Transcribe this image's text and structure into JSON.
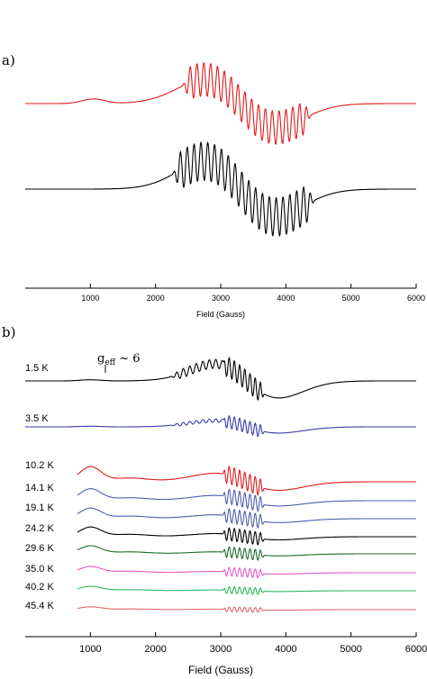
{
  "chart_data": [
    {
      "type": "line",
      "panel_label": "a)",
      "title": "",
      "xlabel": "Field (Gauss)",
      "ylabel": "",
      "xlim": [
        0,
        6000
      ],
      "x_ticks": [
        1000,
        2000,
        3000,
        4000,
        5000,
        6000
      ],
      "tick_labels": [
        "1000",
        "2000",
        "3000",
        "4000",
        "5000",
        "6000"
      ],
      "grid": false,
      "series": [
        {
          "color": "#e01b1b",
          "baseline": 1.0,
          "shape": "experimental",
          "hump_center": 1050,
          "hump_height": 0.06,
          "envelope_center": 3300,
          "hyperfine_start": 2400,
          "hyperfine_end": 4400,
          "hyperfine_period": 105,
          "amplitude": 1.0
        },
        {
          "color": "#000000",
          "baseline": 0.0,
          "shape": "simulated",
          "hump_center": 1050,
          "hump_height": 0.0,
          "envelope_center": 3300,
          "hyperfine_start": 2250,
          "hyperfine_end": 4450,
          "hyperfine_period": 105,
          "amplitude": 1.15
        }
      ]
    },
    {
      "type": "line",
      "panel_label": "b)",
      "title": "",
      "xlabel": "Field (Gauss)",
      "ylabel": "",
      "xlim": [
        0,
        6000
      ],
      "x_ticks": [
        1000,
        2000,
        3000,
        4000,
        5000,
        6000
      ],
      "tick_labels": [
        "1000",
        "2000",
        "3000",
        "4000",
        "5000",
        "6000"
      ],
      "grid": false,
      "annotation": {
        "text": "g",
        "subscript": "eff",
        "suffix": " ~ 6",
        "field": 1200
      },
      "series": [
        {
          "name": "1.5 K",
          "color": "#000000",
          "amplitude": 1.0,
          "hump_height": 0.03,
          "sharp_amplitude": 0.45,
          "style": "broad"
        },
        {
          "name": "3.5 K",
          "color": "#3a3aa8",
          "amplitude": 0.45,
          "hump_height": 0.02,
          "sharp_amplitude": 0.35,
          "style": "broad"
        },
        {
          "name": "10.2 K",
          "color": "#e01b1b",
          "amplitude": 0.7,
          "hump_height": 0.55,
          "sharp_amplitude": 0.55,
          "style": "warm"
        },
        {
          "name": "14.1 K",
          "color": "#4f5fb0",
          "amplitude": 0.5,
          "hump_height": 0.5,
          "sharp_amplitude": 0.55,
          "style": "warm"
        },
        {
          "name": "19.1 K",
          "color": "#4f5fb0",
          "amplitude": 0.4,
          "hump_height": 0.48,
          "sharp_amplitude": 0.55,
          "style": "warm"
        },
        {
          "name": "24.2 K",
          "color": "#000000",
          "amplitude": 0.35,
          "hump_height": 0.48,
          "sharp_amplitude": 0.55,
          "style": "warm"
        },
        {
          "name": "29.6 K",
          "color": "#1f6b2a",
          "amplitude": 0.25,
          "hump_height": 0.44,
          "sharp_amplitude": 0.5,
          "style": "warm"
        },
        {
          "name": "35.0 K",
          "color": "#e05cc8",
          "amplitude": 0.18,
          "hump_height": 0.38,
          "sharp_amplitude": 0.45,
          "style": "warm"
        },
        {
          "name": "40.2 K",
          "color": "#30b860",
          "amplitude": 0.12,
          "hump_height": 0.3,
          "sharp_amplitude": 0.4,
          "style": "warm"
        },
        {
          "name": "45.4 K",
          "color": "#e06a6a",
          "amplitude": 0.08,
          "hump_height": 0.22,
          "sharp_amplitude": 0.32,
          "style": "warm"
        }
      ]
    }
  ]
}
